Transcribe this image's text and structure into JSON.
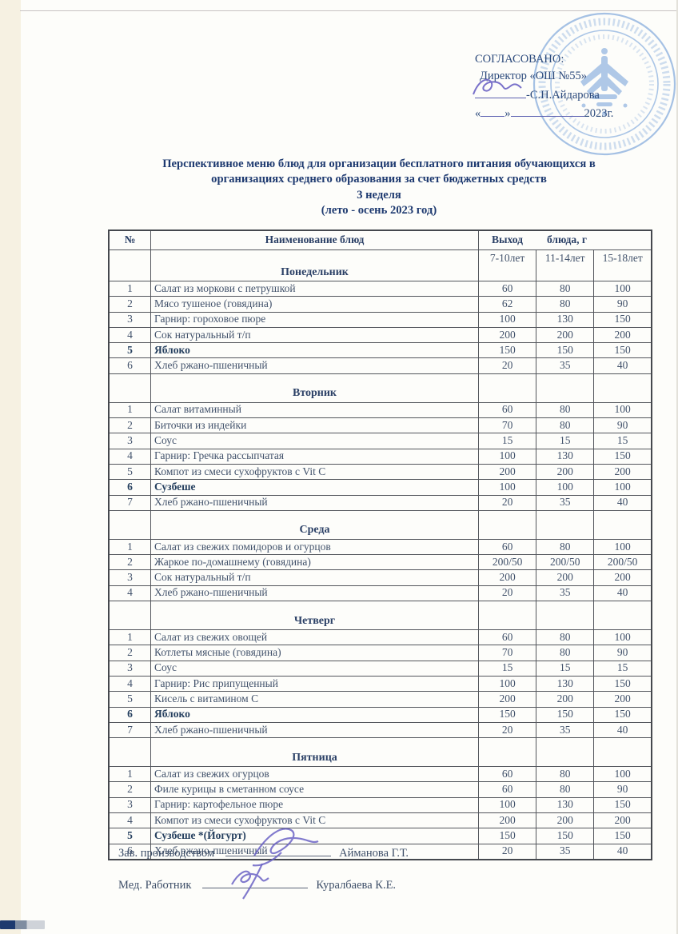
{
  "approval": {
    "line1": "СОГЛАСОВАНО:",
    "line2": "Директор «ОШ №55»",
    "director_name": "-С.Н.Айдарова",
    "quote_open": "«",
    "quote_close": "»",
    "year": "2023г."
  },
  "title": {
    "line1": "Перспективное меню блюд для организации бесплатного питания обучающихся в",
    "line2": "организациях среднего образования за счет бюджетных средств",
    "line3": "3 неделя",
    "line4": "(лето - осень 2023 год)"
  },
  "table": {
    "headers": {
      "num": "№",
      "name": "Наименование блюд",
      "output_1": "Выход",
      "output_2": "блюда, г",
      "ages": [
        "7-10лет",
        "11-14лет",
        "15-18лет"
      ]
    },
    "days": [
      {
        "name": "Понедельник",
        "rows": [
          {
            "num": "1",
            "dish": "Салат из моркови с петрушкой",
            "v": [
              "60",
              "80",
              "100"
            ],
            "bold": false
          },
          {
            "num": "2",
            "dish": "Мясо тушеное (говядина)",
            "v": [
              "62",
              "80",
              "90"
            ],
            "bold": false
          },
          {
            "num": "3",
            "dish": "Гарнир: гороховое пюре",
            "v": [
              "100",
              "130",
              "150"
            ],
            "bold": false
          },
          {
            "num": "4",
            "dish": "Сок натуральный т/п",
            "v": [
              "200",
              "200",
              "200"
            ],
            "bold": false
          },
          {
            "num": "5",
            "dish": "Яблоко",
            "v": [
              "150",
              "150",
              "150"
            ],
            "bold": true
          },
          {
            "num": "6",
            "dish": "Хлеб ржано-пшеничный",
            "v": [
              "20",
              "35",
              "40"
            ],
            "bold": false
          }
        ]
      },
      {
        "name": "Вторник",
        "rows": [
          {
            "num": "1",
            "dish": "Салат витаминный",
            "v": [
              "60",
              "80",
              "100"
            ],
            "bold": false
          },
          {
            "num": "2",
            "dish": "Биточки из индейки",
            "v": [
              "70",
              "80",
              "90"
            ],
            "bold": false
          },
          {
            "num": "3",
            "dish": "Соус",
            "v": [
              "15",
              "15",
              "15"
            ],
            "bold": false
          },
          {
            "num": "4",
            "dish": "Гарнир: Гречка рассыпчатая",
            "v": [
              "100",
              "130",
              "150"
            ],
            "bold": false
          },
          {
            "num": "5",
            "dish": "Компот из смеси сухофруктов с Vit C",
            "v": [
              "200",
              "200",
              "200"
            ],
            "bold": false
          },
          {
            "num": "6",
            "dish": "Сузбеше",
            "v": [
              "100",
              "100",
              "100"
            ],
            "bold": true
          },
          {
            "num": "7",
            "dish": "Хлеб ржано-пшеничный",
            "v": [
              "20",
              "35",
              "40"
            ],
            "bold": false
          }
        ]
      },
      {
        "name": "Среда",
        "rows": [
          {
            "num": "1",
            "dish": "Салат из свежих помидоров и огурцов",
            "v": [
              "60",
              "80",
              "100"
            ],
            "bold": false
          },
          {
            "num": "2",
            "dish": "Жаркое по-домашнему (говядина)",
            "v": [
              "200/50",
              "200/50",
              "200/50"
            ],
            "bold": false
          },
          {
            "num": "3",
            "dish": "Сок натуральный т/п",
            "v": [
              "200",
              "200",
              "200"
            ],
            "bold": false
          },
          {
            "num": "4",
            "dish": "Хлеб ржано-пшеничный",
            "v": [
              "20",
              "35",
              "40"
            ],
            "bold": false
          }
        ]
      },
      {
        "name": "Четверг",
        "rows": [
          {
            "num": "1",
            "dish": "Салат из свежих овощей",
            "v": [
              "60",
              "80",
              "100"
            ],
            "bold": false
          },
          {
            "num": "2",
            "dish": "Котлеты мясные (говядина)",
            "v": [
              "70",
              "80",
              "90"
            ],
            "bold": false
          },
          {
            "num": "3",
            "dish": "Соус",
            "v": [
              "15",
              "15",
              "15"
            ],
            "bold": false
          },
          {
            "num": "4",
            "dish": "Гарнир: Рис припущенный",
            "v": [
              "100",
              "130",
              "150"
            ],
            "bold": false
          },
          {
            "num": "5",
            "dish": "Кисель с витамином С",
            "v": [
              "200",
              "200",
              "200"
            ],
            "bold": false
          },
          {
            "num": "6",
            "dish": "Яблоко",
            "v": [
              "150",
              "150",
              "150"
            ],
            "bold": true
          },
          {
            "num": "7",
            "dish": "Хлеб ржано-пшеничный",
            "v": [
              "20",
              "35",
              "40"
            ],
            "bold": false
          }
        ]
      },
      {
        "name": "Пятница",
        "rows": [
          {
            "num": "1",
            "dish": "Салат из свежих огурцов",
            "v": [
              "60",
              "80",
              "100"
            ],
            "bold": false
          },
          {
            "num": "2",
            "dish": "Филе курицы в сметанном соусе",
            "v": [
              "60",
              "80",
              "90"
            ],
            "bold": false
          },
          {
            "num": "3",
            "dish": "Гарнир:  картофельное пюре",
            "v": [
              "100",
              "130",
              "150"
            ],
            "bold": false
          },
          {
            "num": "4",
            "dish": "Компот из смеси сухофруктов с Vit C",
            "v": [
              "200",
              "200",
              "200"
            ],
            "bold": false
          },
          {
            "num": "5",
            "dish": "Сузбеше *(Йогурт)",
            "v": [
              "150",
              "150",
              "150"
            ],
            "bold": true
          },
          {
            "num": "6",
            "dish": "Хлеб ржано-пшеничный",
            "v": [
              "20",
              "35",
              "40"
            ],
            "bold": false
          }
        ]
      }
    ]
  },
  "signatures": [
    {
      "label": "Зав. производством",
      "name": "Айманова Г.Т."
    },
    {
      "label": "Мед. Работник",
      "name": "Куралбаева К.Е."
    }
  ],
  "colors": {
    "stamp_blue": "#7ba3d8",
    "title_navy": "#1e3a70",
    "body_text": "#3d4e68",
    "table_border": "#53565c",
    "signature_ink": "#6b63c4"
  }
}
